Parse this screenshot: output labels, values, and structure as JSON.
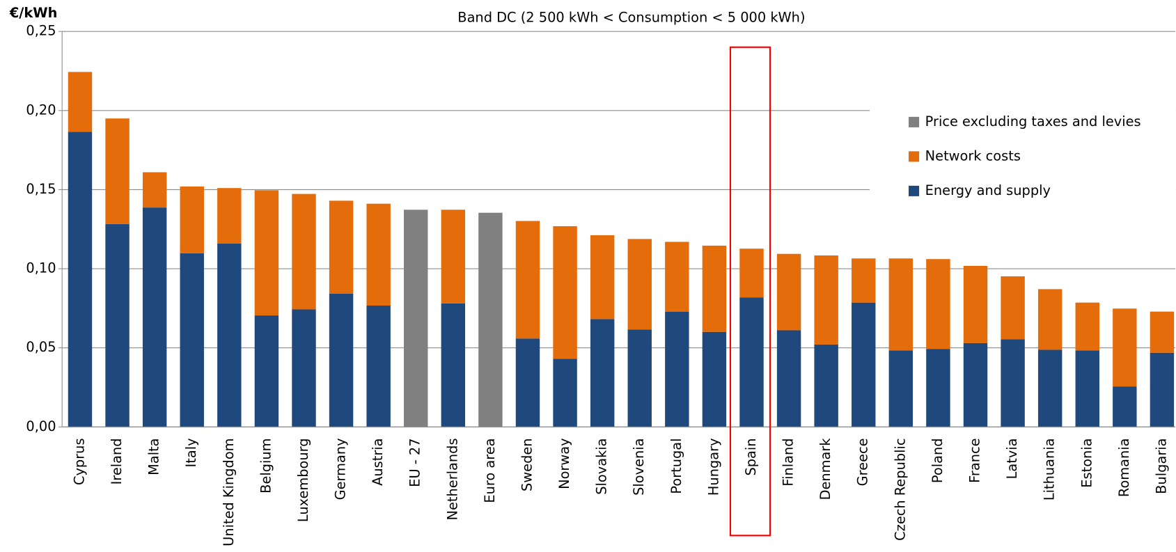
{
  "chart_data": {
    "type": "stacked_bar",
    "subtitle": "Band DC (2 500 kWh < Consumption  < 5 000 kWh)",
    "y_label": "€/kWh",
    "categories": [
      "Cyprus",
      "Ireland",
      "Malta",
      "Italy",
      "United Kingdom",
      "Belgium",
      "Luxembourg",
      "Germany",
      "Austria",
      "EU - 27",
      "Netherlands",
      "Euro area",
      "Sweden",
      "Norway",
      "Slovakia",
      "Slovenia",
      "Portugal",
      "Hungary",
      "Spain",
      "Finland",
      "Denmark",
      "Greece",
      "Czech Republic",
      "Poland",
      "France",
      "Latvia",
      "Lithuania",
      "Estonia",
      "Romania",
      "Bulgaria"
    ],
    "series": [
      {
        "name": "Price excluding taxes and levies",
        "color": "#808080",
        "values": [
          null,
          null,
          null,
          null,
          null,
          null,
          null,
          null,
          null,
          0.1373,
          null,
          0.1354,
          null,
          null,
          null,
          null,
          null,
          null,
          null,
          null,
          null,
          null,
          null,
          null,
          null,
          null,
          null,
          null,
          null,
          null
        ]
      },
      {
        "name": "Network costs",
        "color": "#e46c0a",
        "values": [
          0.0378,
          0.0667,
          0.0223,
          0.0422,
          0.035,
          0.0791,
          0.073,
          0.0587,
          0.0644,
          null,
          0.0592,
          null,
          0.0743,
          0.0838,
          0.053,
          0.0572,
          0.0441,
          0.0545,
          0.0308,
          0.0483,
          0.0563,
          0.0279,
          0.0582,
          0.0569,
          0.0488,
          0.0398,
          0.0383,
          0.0303,
          0.0492,
          0.026
        ]
      },
      {
        "name": "Energy and supply",
        "color": "#1f497d",
        "values": [
          0.1866,
          0.1283,
          0.1387,
          0.1098,
          0.116,
          0.0705,
          0.0743,
          0.0843,
          0.0767,
          null,
          0.0781,
          null,
          0.0559,
          0.0431,
          0.0682,
          0.0616,
          0.0729,
          0.0601,
          0.0819,
          0.0611,
          0.0521,
          0.0786,
          0.0483,
          0.0492,
          0.053,
          0.0554,
          0.0488,
          0.0483,
          0.0256,
          0.0469
        ]
      }
    ],
    "ylim": [
      0,
      0.25
    ],
    "yticks": [
      {
        "value": 0,
        "label": "0,00"
      },
      {
        "value": 0.05,
        "label": "0,05"
      },
      {
        "value": 0.1,
        "label": "0,10"
      },
      {
        "value": 0.15,
        "label": "0,15"
      },
      {
        "value": 0.2,
        "label": "0,20"
      },
      {
        "value": 0.25,
        "label": "0,25"
      }
    ],
    "grid": true
  }
}
